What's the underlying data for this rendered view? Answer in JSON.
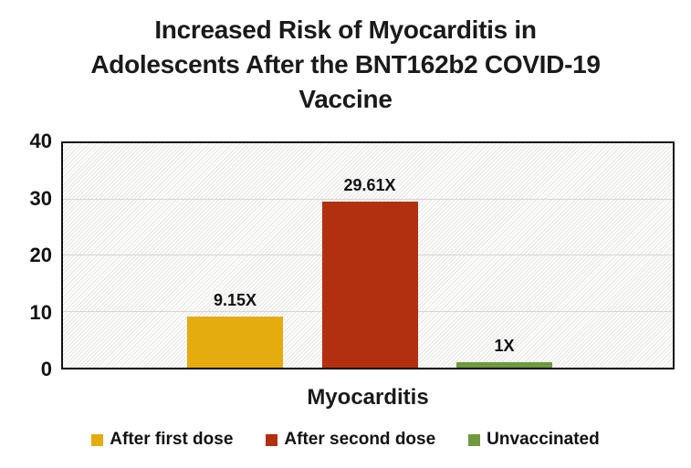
{
  "page": {
    "background": "#ffffff",
    "text_color": "#1a1a1a"
  },
  "chart_data": {
    "type": "bar",
    "title": "Increased Risk of Myocarditis in Adolescents After the BNT162b2 COVID-19 Vaccine",
    "title_lines": [
      "Increased Risk of Myocarditis in",
      "Adolescents After the BNT162b2 COVID-19",
      "Vaccine"
    ],
    "categories": [
      "Myocarditis"
    ],
    "xlabel": "Myocarditis",
    "ylabel": "",
    "ylim": [
      0,
      40
    ],
    "yticks": [
      0,
      10,
      20,
      30,
      40
    ],
    "grid": true,
    "legend_position": "bottom",
    "series": [
      {
        "name": "After first dose",
        "values": [
          9.15
        ],
        "data_label": "9.15X",
        "color": "#E5AC10"
      },
      {
        "name": "After second dose",
        "values": [
          29.61
        ],
        "data_label": "29.61X",
        "color": "#B23010"
      },
      {
        "name": "Unvaccinated",
        "values": [
          1
        ],
        "data_label": "1X",
        "color": "#6F9A40"
      }
    ]
  }
}
